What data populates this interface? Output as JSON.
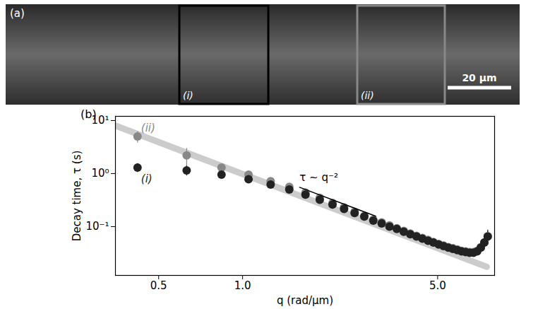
{
  "image_panel": {
    "label": "(a)",
    "regions": [
      {
        "label": "(i)",
        "color": "#000000"
      },
      {
        "label": "(ii)",
        "color": "#888888"
      }
    ],
    "scale_bar": "20 μm"
  },
  "chart_data": {
    "type": "scatter",
    "panel_label": "(b)",
    "x_label": "q (rad/μm)",
    "y_label": "Decay time, τ (s)",
    "log": true,
    "xlim": [
      0.35,
      8.0
    ],
    "ylim": [
      0.012,
      12
    ],
    "xticks": [
      {
        "value": 0.5,
        "label": "0.5"
      },
      {
        "value": 1,
        "label": "1.0"
      },
      {
        "value": 5,
        "label": "5.0"
      }
    ],
    "yticks": [
      {
        "value": 0.1,
        "label": "10⁻¹"
      },
      {
        "value": 1,
        "label": "10⁰"
      },
      {
        "value": 10,
        "label": "10¹"
      }
    ],
    "x": [
      0.42,
      0.63,
      0.84,
      1.05,
      1.26,
      1.47,
      1.68,
      1.89,
      2.1,
      2.31,
      2.52,
      2.73,
      2.94,
      3.15,
      3.36,
      3.57,
      3.78,
      3.99,
      4.2,
      4.41,
      4.62,
      4.83,
      5.04,
      5.25,
      5.46,
      5.67,
      5.88,
      6.09,
      6.3,
      6.51,
      6.72,
      6.93,
      7.14,
      7.35,
      7.56
    ],
    "series": [
      {
        "name": "(ii)",
        "color": "#888888",
        "marker": "circle",
        "values": [
          5.0,
          2.2,
          1.3,
          0.95,
          0.72,
          0.56,
          0.44,
          0.35,
          0.28,
          0.23,
          0.19,
          0.16,
          0.135,
          0.12,
          0.105,
          0.093,
          0.083,
          0.074,
          0.067,
          0.061,
          0.056,
          0.051,
          0.047,
          0.044,
          0.041,
          0.039,
          0.037,
          0.035,
          0.034,
          0.033,
          0.033,
          0.035,
          0.041,
          0.05,
          0.066
        ],
        "errors": [
          1.2,
          0.8,
          0.2,
          0.08,
          0.05,
          0.03,
          0.02,
          0.015,
          0.01,
          0.008,
          0.007,
          0.006,
          0.005,
          0.005,
          0.004,
          0.004,
          0.004,
          0.003,
          0.003,
          0.003,
          0.003,
          0.003,
          0.003,
          0.003,
          0.003,
          0.003,
          0.003,
          0.003,
          0.003,
          0.003,
          0.004,
          0.005,
          0.006,
          0.01,
          0.02
        ]
      },
      {
        "name": "(i)",
        "color": "#222222",
        "marker": "circle",
        "values": [
          1.3,
          1.15,
          0.95,
          0.78,
          0.62,
          0.5,
          0.4,
          0.32,
          0.26,
          0.215,
          0.18,
          0.155,
          0.13,
          0.115,
          0.1,
          0.09,
          0.08,
          0.072,
          0.065,
          0.059,
          0.054,
          0.05,
          0.046,
          0.043,
          0.04,
          0.038,
          0.036,
          0.034,
          0.033,
          0.032,
          0.032,
          0.034,
          0.04,
          0.05,
          0.065
        ],
        "errors": [
          0.25,
          0.25,
          0.08,
          0.05,
          0.03,
          0.02,
          0.015,
          0.012,
          0.01,
          0.008,
          0.007,
          0.006,
          0.005,
          0.005,
          0.004,
          0.004,
          0.004,
          0.003,
          0.003,
          0.003,
          0.003,
          0.003,
          0.003,
          0.003,
          0.003,
          0.003,
          0.003,
          0.003,
          0.003,
          0.003,
          0.004,
          0.005,
          0.006,
          0.01,
          0.02
        ]
      }
    ],
    "fit": {
      "x": [
        0.35,
        7.5
      ],
      "values": [
        8.0,
        0.0174
      ],
      "color": "#cccccc",
      "line_style": "solid"
    },
    "reference_line": {
      "x": [
        1.6,
        3.0
      ],
      "values": [
        0.55,
        0.157
      ],
      "label": "τ ~ q⁻²",
      "color": "#000000"
    }
  }
}
